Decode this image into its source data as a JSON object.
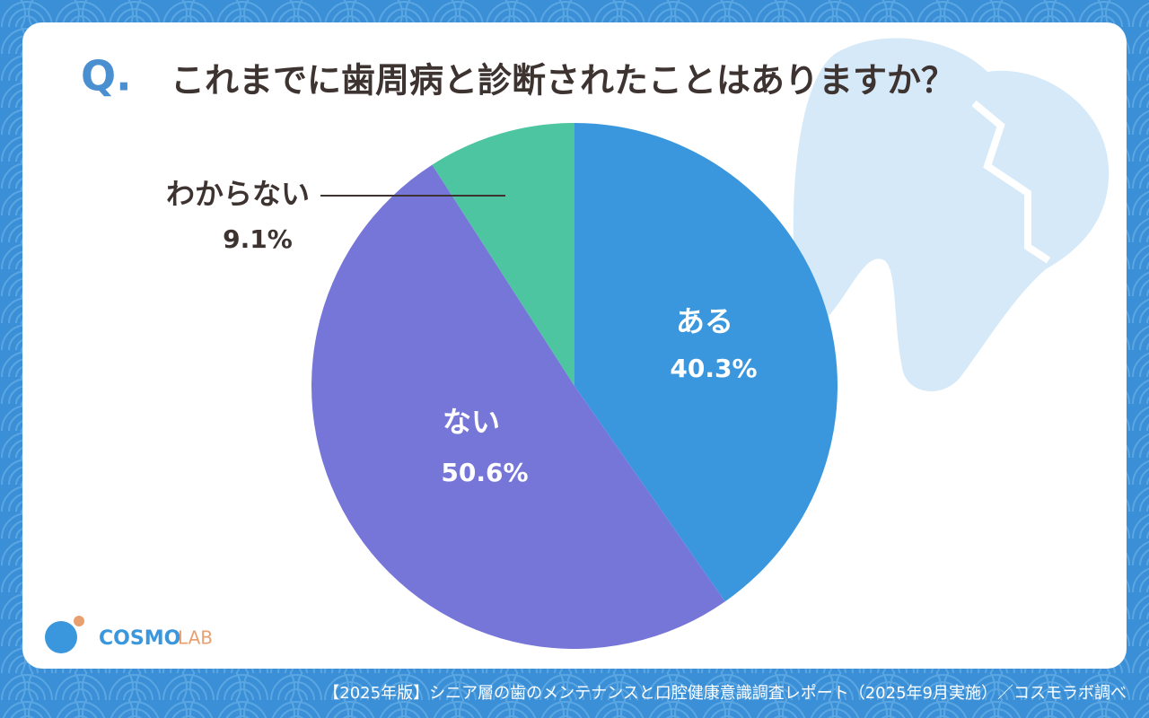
{
  "chart_data": {
    "type": "pie",
    "title_prefix": "Q.",
    "title": "これまでに歯周病と診断されたことはありますか？",
    "categories": [
      "ある",
      "ない",
      "わからない"
    ],
    "values": [
      40.3,
      50.6,
      9.1
    ],
    "value_labels": [
      "40.3%",
      "50.6%",
      "9.1%"
    ],
    "colors": [
      "#3a97dd",
      "#7676d9",
      "#4dc5a0"
    ]
  },
  "brand": [
    "COSMO",
    "LAB"
  ],
  "footer": "【2025年版】シニア層の歯のメンテナンスと口腔健康意識調査レポート（2025年9月実施）／コスモラボ調べ"
}
